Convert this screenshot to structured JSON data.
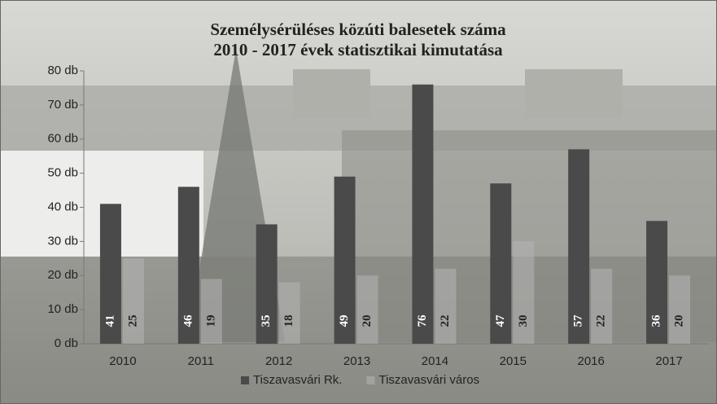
{
  "chart_data": {
    "type": "bar",
    "title": "Személysérüléses közúti balesetek száma",
    "subtitle": "2010 - 2017 évek statisztikai kimutatása",
    "categories": [
      "2010",
      "2011",
      "2012",
      "2013",
      "2014",
      "2015",
      "2016",
      "2017"
    ],
    "series": [
      {
        "name": "Tiszavasvári Rk.",
        "color": "#4a4a4a",
        "values": [
          41,
          46,
          35,
          49,
          76,
          47,
          57,
          36
        ]
      },
      {
        "name": "Tiszavasvári város",
        "color": "#b4b4b4",
        "values": [
          25,
          19,
          18,
          20,
          22,
          30,
          22,
          20
        ]
      }
    ],
    "ylim": [
      0,
      80
    ],
    "yticks": [
      {
        "value": 0,
        "label": "0 db"
      },
      {
        "value": 10,
        "label": "10 db"
      },
      {
        "value": 20,
        "label": "20 db"
      },
      {
        "value": 30,
        "label": "30 db"
      },
      {
        "value": 40,
        "label": "40 db"
      },
      {
        "value": 50,
        "label": "50 db"
      },
      {
        "value": 60,
        "label": "60 db"
      },
      {
        "value": 70,
        "label": "70 db"
      },
      {
        "value": 80,
        "label": "80 db"
      }
    ],
    "legend": "bottom"
  }
}
